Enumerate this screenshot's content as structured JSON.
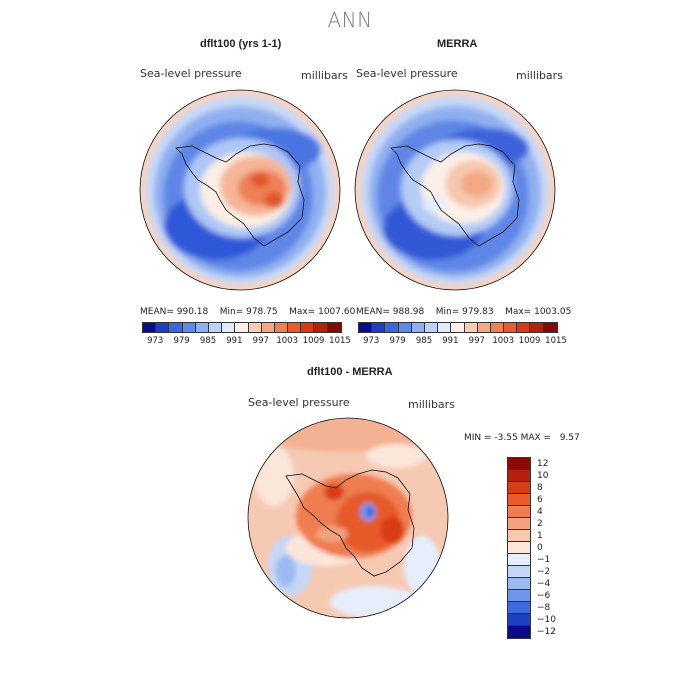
{
  "title": "ANN",
  "panels": [
    {
      "title": "dflt100 (yrs 1-1)",
      "variable": "Sea-level pressure",
      "units": "millibars",
      "mean_label": "MEAN=",
      "mean": "990.18",
      "min_label": "Min=",
      "min": "978.75",
      "max_label": "Max=",
      "max": "1007.60"
    },
    {
      "title": "MERRA",
      "variable": "Sea-level pressure",
      "units": "millibars",
      "mean_label": "MEAN=",
      "mean": "988.98",
      "min_label": "Min=",
      "min": "979.83",
      "max_label": "Max=",
      "max": "1003.05"
    }
  ],
  "diff": {
    "title": "dflt100 - MERRA",
    "variable": "Sea-level pressure",
    "units": "millibars",
    "min_label": "MIN =",
    "min": "-3.55",
    "max_label": "MAX =",
    "max": "9.57"
  },
  "colorbar_top": {
    "labels": [
      "973",
      "979",
      "985",
      "991",
      "997",
      "1003",
      "1009",
      "1015"
    ],
    "colors": [
      "#0b0b8c",
      "#1f3fbf",
      "#3a68de",
      "#5f8ae8",
      "#8fb0f2",
      "#bcd2fa",
      "#e3ecfb",
      "#fdf0e8",
      "#f7cdb6",
      "#f3a985",
      "#ee8055",
      "#ea5a2c",
      "#d83a14",
      "#b0230d",
      "#7f0a06"
    ]
  },
  "colorbar_diff": {
    "labels": [
      "12",
      "10",
      "8",
      "6",
      "4",
      "2",
      "1",
      "0",
      "−1",
      "−2",
      "−4",
      "−6",
      "−8",
      "−10",
      "−12"
    ],
    "colors": [
      "#8b0a06",
      "#b5200d",
      "#d93d14",
      "#ea5b2c",
      "#ef7d4f",
      "#f3a27d",
      "#f7c7ae",
      "#fbe6da",
      "#e7eefb",
      "#c5d7f7",
      "#9cbaf2",
      "#6f95e8",
      "#3f6ade",
      "#1e3fc0",
      "#0a0a8a"
    ]
  }
}
